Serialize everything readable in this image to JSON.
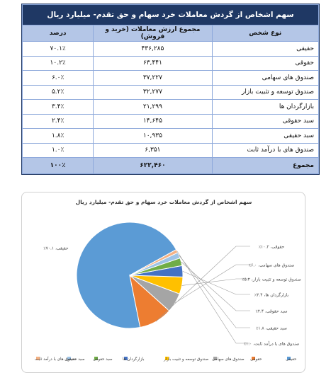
{
  "table": {
    "title": "سهم اشخاص از گردش معاملات خرد سهام و حق تقدم- میلیارد ریال",
    "headers": {
      "type": "نوع شخص",
      "value": "مجموع ارزش معاملات (خرید و فروش)",
      "percent": "درصد"
    },
    "rows": [
      {
        "type": "حقیقی",
        "value": "۴۳۶,۲۸۵",
        "percent": "۷۰.۱٪"
      },
      {
        "type": "حقوقی",
        "value": "۶۳,۴۴۱",
        "percent": "۱۰.۲٪"
      },
      {
        "type": "صندوق های سهامی",
        "value": "۳۷,۲۲۷",
        "percent": "۶.۰٪"
      },
      {
        "type": "صندوق توسعه و تثبیت بازار",
        "value": "۳۲,۲۷۷",
        "percent": "۵.۲٪"
      },
      {
        "type": "بازارگردان ها",
        "value": "۲۱,۲۹۹",
        "percent": "۳.۴٪"
      },
      {
        "type": "سبد حقوقی",
        "value": "۱۴,۶۴۵",
        "percent": "۲.۴٪"
      },
      {
        "type": "سبد حقیقی",
        "value": "۱۰,۹۳۵",
        "percent": "۱.۸٪"
      },
      {
        "type": "صندوق های با درآمد ثابت",
        "value": "۶,۳۵۱",
        "percent": "۱.۰٪"
      }
    ],
    "total": {
      "type": "مجموع",
      "value": "۶۲۲,۴۶۰",
      "percent": "۱۰۰٪"
    }
  },
  "chart_data": {
    "type": "pie",
    "title": "سهم اشخاص از گردش معاملات خرد سهام و حق تقدم- میلیارد ریال",
    "categories": [
      "حقیقی",
      "حقوقی",
      "صندوق های سهامی",
      "صندوق توسعه و تثبیت بازار",
      "بازارگردان ها",
      "سبد حقوقی",
      "سبد حقیقی",
      "صندوق های با درآمد ثابت"
    ],
    "values": [
      436285,
      63441,
      37227,
      32277,
      21299,
      14645,
      10935,
      6351
    ],
    "data_labels": [
      "حقیقی، ۷۰.۱٪",
      "حقوقی، ۱۰.۲٪",
      "صندوق های سهامی، ۶.۰٪",
      "صندوق توسعه و تثبیت بازار، ۵.۲٪",
      "بازارگردان ها، ۳.۴٪",
      "سبد حقوقی، ۲.۴٪",
      "سبد حقیقی، ۱.۸٪",
      "صندوق های با درآمد ثابت، ۱.۰٪"
    ],
    "colors": [
      "#5b9bd5",
      "#ed7d31",
      "#a5a5a5",
      "#ffc000",
      "#4472c4",
      "#70ad47",
      "#9dc3e6",
      "#f4b183"
    ],
    "legend_position": "bottom"
  }
}
